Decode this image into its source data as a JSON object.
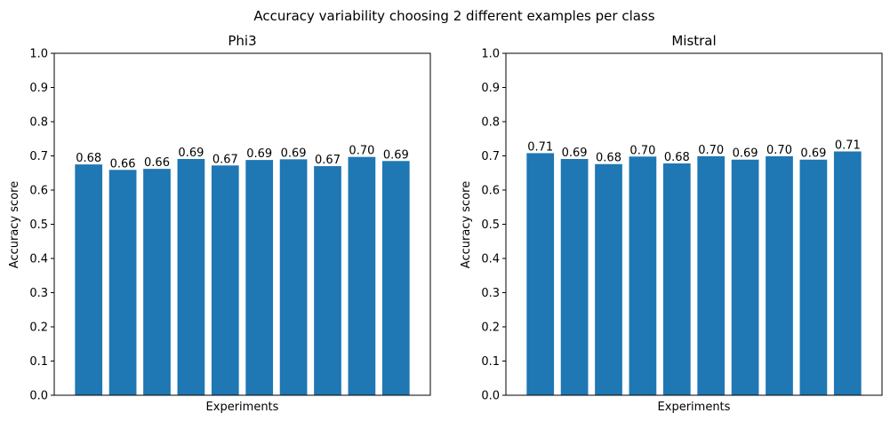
{
  "suptitle": "Accuracy variability choosing 2 different examples per class",
  "bar_color": "#1f77b4",
  "chart_data": [
    {
      "type": "bar",
      "title": "Phi3",
      "xlabel": "Experiments",
      "ylabel": "Accuracy score",
      "ylim": [
        0,
        1.0
      ],
      "yticks": [
        "0.0",
        "0.1",
        "0.2",
        "0.3",
        "0.4",
        "0.5",
        "0.6",
        "0.7",
        "0.8",
        "0.9",
        "1.0"
      ],
      "values": [
        0.675,
        0.659,
        0.662,
        0.691,
        0.672,
        0.688,
        0.69,
        0.67,
        0.697,
        0.685
      ],
      "data_labels": [
        "0.68",
        "0.66",
        "0.66",
        "0.69",
        "0.67",
        "0.69",
        "0.69",
        "0.67",
        "0.70",
        "0.69"
      ],
      "grid": false,
      "xticks_visible": false
    },
    {
      "type": "bar",
      "title": "Mistral",
      "xlabel": "Experiments",
      "ylabel": "Accuracy score",
      "ylim": [
        0,
        1.0
      ],
      "yticks": [
        "0.0",
        "0.1",
        "0.2",
        "0.3",
        "0.4",
        "0.5",
        "0.6",
        "0.7",
        "0.8",
        "0.9",
        "1.0"
      ],
      "values": [
        0.708,
        0.691,
        0.676,
        0.698,
        0.678,
        0.699,
        0.689,
        0.699,
        0.689,
        0.713
      ],
      "data_labels": [
        "0.71",
        "0.69",
        "0.68",
        "0.70",
        "0.68",
        "0.70",
        "0.69",
        "0.70",
        "0.69",
        "0.71"
      ],
      "grid": false,
      "xticks_visible": false
    }
  ]
}
